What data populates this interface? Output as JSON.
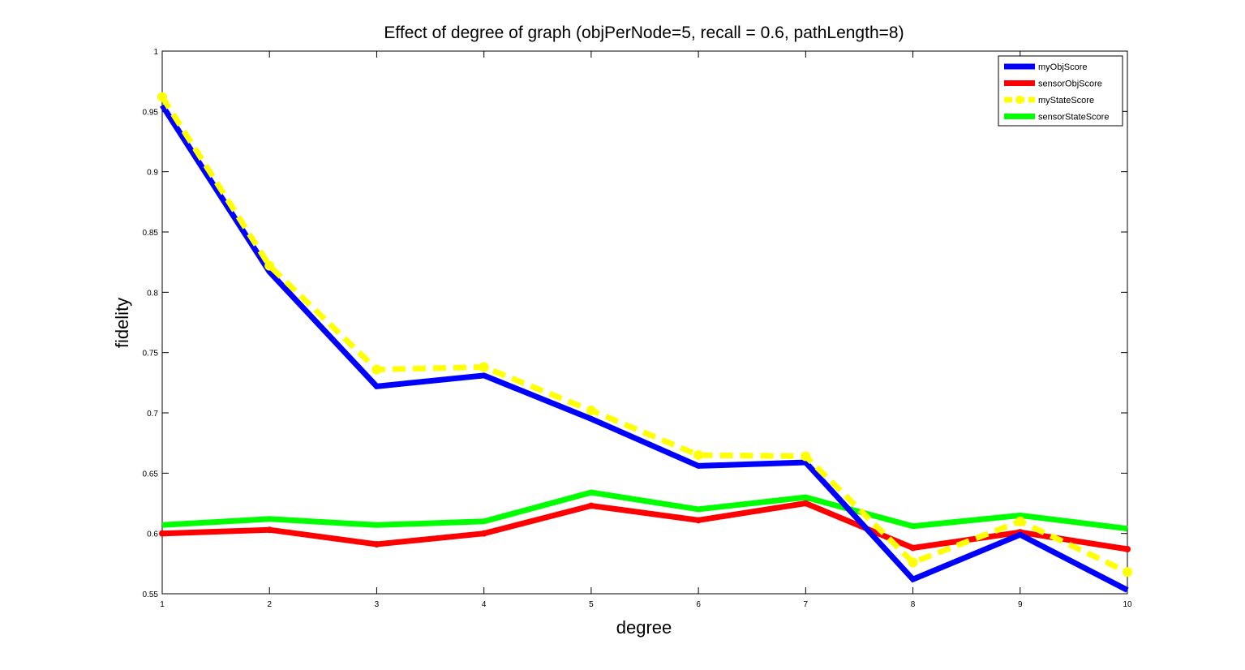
{
  "chart_data": {
    "type": "line",
    "title": "Effect of degree of graph (objPerNode=5, recall = 0.6, pathLength=8)",
    "xlabel": "degree",
    "ylabel": "fidelity",
    "x": [
      1,
      2,
      3,
      4,
      5,
      6,
      7,
      8,
      9,
      10
    ],
    "xlim": [
      1,
      10
    ],
    "ylim": [
      0.55,
      1
    ],
    "xticks": [
      1,
      2,
      3,
      4,
      5,
      6,
      7,
      8,
      9,
      10
    ],
    "xtick_labels": [
      "1",
      "2",
      "3",
      "4",
      "5",
      "6",
      "7",
      "8",
      "9",
      "10"
    ],
    "yticks": [
      0.55,
      0.6,
      0.65,
      0.7,
      0.75,
      0.8,
      0.85,
      0.9,
      0.95,
      1
    ],
    "ytick_labels": [
      "0.55",
      "0.6",
      "0.65",
      "0.7",
      "0.75",
      "0.8",
      "0.85",
      "0.9",
      "0.95",
      "1"
    ],
    "grid": false,
    "legend_position": "top-right",
    "series": [
      {
        "name": "myObjScore",
        "color": "#0000ff",
        "style": "solid",
        "marker": "none",
        "values": [
          0.955,
          0.817,
          0.722,
          0.731,
          0.695,
          0.656,
          0.659,
          0.562,
          0.599,
          0.553
        ]
      },
      {
        "name": "sensorObjScore",
        "color": "#ff0000",
        "style": "solid",
        "marker": "dot",
        "values": [
          0.6,
          0.603,
          0.591,
          0.6,
          0.623,
          0.611,
          0.625,
          0.588,
          0.601,
          0.587
        ]
      },
      {
        "name": "myStateScore",
        "color": "#ffff00",
        "style": "dashed",
        "marker": "circle",
        "values": [
          0.962,
          0.822,
          0.736,
          0.738,
          0.702,
          0.665,
          0.664,
          0.576,
          0.61,
          0.568
        ]
      },
      {
        "name": "sensorStateScore",
        "color": "#00ff00",
        "style": "solid",
        "marker": "none",
        "values": [
          0.607,
          0.612,
          0.607,
          0.61,
          0.634,
          0.62,
          0.63,
          0.606,
          0.615,
          0.604
        ]
      }
    ]
  }
}
